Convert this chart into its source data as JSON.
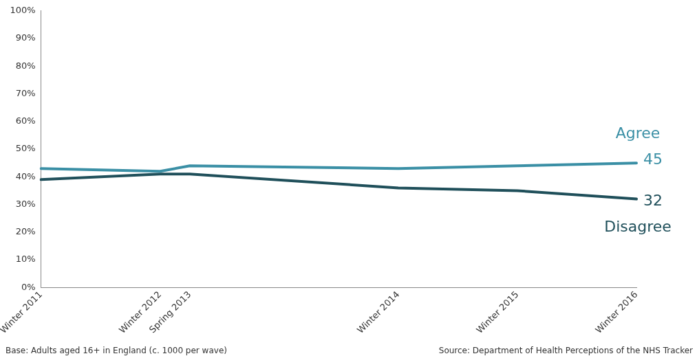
{
  "chart_data": {
    "type": "line",
    "categories": [
      "Winter 2011",
      null,
      null,
      null,
      "Winter 2012",
      "Spring 2013",
      null,
      null,
      null,
      null,
      null,
      null,
      "Winter 2014",
      null,
      null,
      null,
      "Winter 2015",
      null,
      null,
      null,
      "Winter 2016"
    ],
    "ylim": [
      0,
      100
    ],
    "yticks": [
      {
        "value": 0,
        "label": "0%"
      },
      {
        "value": 10,
        "label": "10%"
      },
      {
        "value": 20,
        "label": "20%"
      },
      {
        "value": 30,
        "label": "30%"
      },
      {
        "value": 40,
        "label": "40%"
      },
      {
        "value": 50,
        "label": "50%"
      },
      {
        "value": 60,
        "label": "60%"
      },
      {
        "value": 70,
        "label": "70%"
      },
      {
        "value": 80,
        "label": "80%"
      },
      {
        "value": 90,
        "label": "90%"
      },
      {
        "value": 100,
        "label": "100%"
      }
    ],
    "series": [
      {
        "name": "Agree",
        "color": "#3a8fa5",
        "values": [
          43,
          null,
          null,
          null,
          42,
          44,
          null,
          null,
          null,
          null,
          null,
          null,
          43,
          null,
          null,
          null,
          44,
          null,
          null,
          null,
          45
        ],
        "value_labels": [
          null,
          null,
          null,
          null,
          null,
          null,
          null,
          null,
          null,
          null,
          null,
          null,
          null,
          null,
          null,
          null,
          null,
          null,
          null,
          null,
          "45"
        ]
      },
      {
        "name": "Disagree",
        "color": "#1f4f5a",
        "values": [
          39,
          null,
          null,
          null,
          41,
          41,
          null,
          null,
          null,
          null,
          null,
          null,
          36,
          null,
          null,
          null,
          35,
          null,
          null,
          null,
          32
        ],
        "value_labels": [
          null,
          null,
          null,
          null,
          null,
          null,
          null,
          null,
          null,
          null,
          null,
          null,
          null,
          null,
          null,
          null,
          null,
          null,
          null,
          null,
          "32"
        ]
      }
    ],
    "grid": false,
    "legend": false,
    "marker": "none",
    "line_style": "solid",
    "annotations": [
      "Base: Adults aged 16+ in England (c. 1000 per wave)",
      "Source: Department of Health Perceptions of the NHS Tracker"
    ]
  }
}
